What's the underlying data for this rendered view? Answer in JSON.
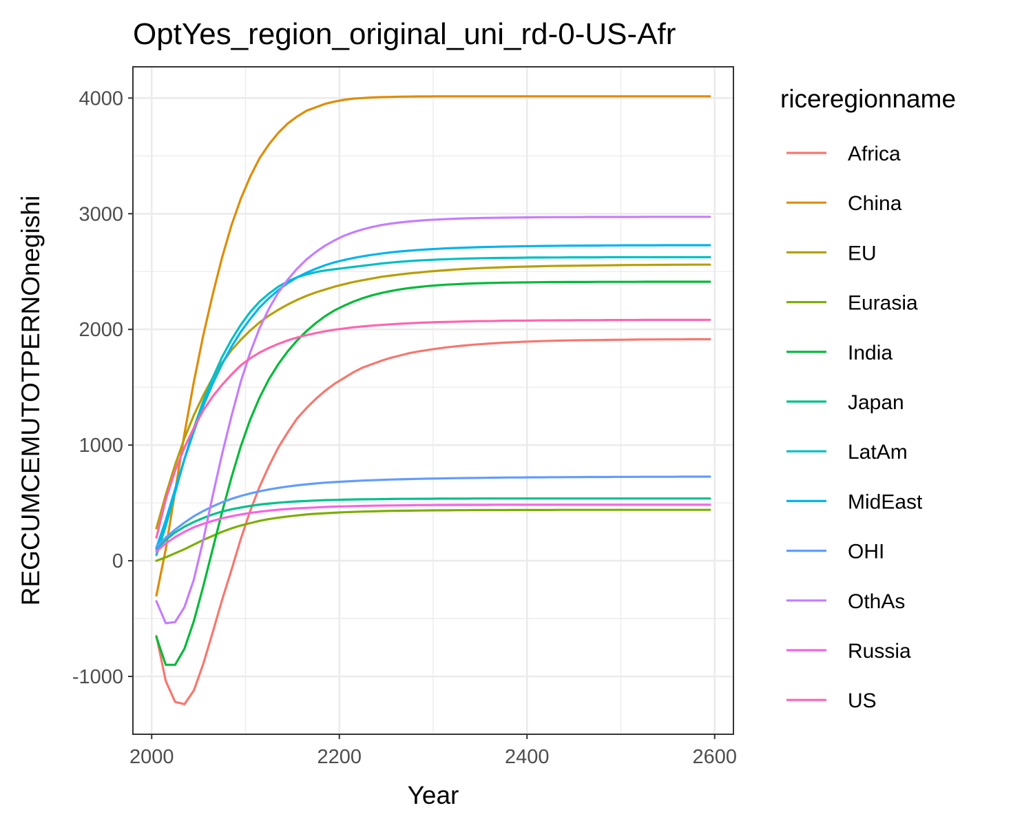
{
  "chart_data": {
    "type": "line",
    "title": "OptYes_region_original_uni_rd-0-US-Afr",
    "xlabel": "Year",
    "ylabel": "REGCUMCEMUTOTPERNOnegishi",
    "xlim": [
      1980,
      2620
    ],
    "ylim": [
      -1500,
      4270
    ],
    "x_ticks": [
      2000,
      2200,
      2400,
      2600
    ],
    "x_tick_labels": [
      "2000",
      "2200",
      "2400",
      "2600"
    ],
    "y_ticks": [
      -1000,
      0,
      1000,
      2000,
      3000,
      4000
    ],
    "y_tick_labels": [
      "-1000",
      "0",
      "1000",
      "2000",
      "3000",
      "4000"
    ],
    "grid": true,
    "legend_title": "riceregionname",
    "legend_position": "right",
    "x": [
      2005,
      2015,
      2025,
      2035,
      2045,
      2055,
      2065,
      2075,
      2085,
      2095,
      2105,
      2115,
      2125,
      2135,
      2145,
      2155,
      2165,
      2175,
      2185,
      2195,
      2205,
      2215,
      2225,
      2235,
      2245,
      2255,
      2265,
      2275,
      2285,
      2295,
      2305,
      2315,
      2325,
      2335,
      2345,
      2355,
      2365,
      2375,
      2385,
      2395,
      2405,
      2415,
      2425,
      2435,
      2445,
      2455,
      2465,
      2475,
      2485,
      2495,
      2505,
      2515,
      2525,
      2535,
      2545,
      2555,
      2565,
      2575,
      2585,
      2595
    ],
    "series": [
      {
        "name": "Africa",
        "color": "#F8766D",
        "values": [
          -650,
          -1040,
          -1220,
          -1240,
          -1120,
          -890,
          -620,
          -340,
          -80,
          190,
          430,
          640,
          820,
          980,
          1110,
          1230,
          1320,
          1400,
          1470,
          1530,
          1580,
          1630,
          1670,
          1700,
          1730,
          1755,
          1775,
          1795,
          1810,
          1823,
          1835,
          1845,
          1854,
          1862,
          1869,
          1875,
          1880,
          1885,
          1889,
          1893,
          1896,
          1899,
          1901,
          1903,
          1905,
          1906,
          1907,
          1908,
          1909,
          1910,
          1911,
          1912,
          1913,
          1913,
          1914,
          1914,
          1914,
          1915,
          1915,
          1915
        ]
      },
      {
        "name": "China",
        "color": "#DE8C00",
        "values": [
          -300,
          100,
          600,
          1100,
          1550,
          1950,
          2300,
          2620,
          2900,
          3130,
          3320,
          3480,
          3600,
          3700,
          3780,
          3840,
          3890,
          3920,
          3950,
          3970,
          3985,
          3995,
          4000,
          4005,
          4008,
          4010,
          4012,
          4013,
          4014,
          4014,
          4015,
          4015,
          4015,
          4015,
          4015,
          4015,
          4015,
          4015,
          4015,
          4015,
          4015,
          4015,
          4015,
          4015,
          4015,
          4015,
          4015,
          4015,
          4015,
          4015,
          4015,
          4015,
          4015,
          4015,
          4015,
          4015,
          4015,
          4015,
          4015,
          4015
        ]
      },
      {
        "name": "EU",
        "color": "#B79F00",
        "values": [
          280,
          570,
          830,
          1060,
          1260,
          1430,
          1580,
          1710,
          1820,
          1910,
          1990,
          2060,
          2120,
          2170,
          2215,
          2255,
          2290,
          2320,
          2345,
          2370,
          2390,
          2410,
          2425,
          2440,
          2455,
          2465,
          2475,
          2485,
          2492,
          2500,
          2507,
          2513,
          2518,
          2523,
          2527,
          2531,
          2534,
          2537,
          2540,
          2542,
          2544,
          2546,
          2548,
          2549,
          2550,
          2551,
          2552,
          2553,
          2554,
          2555,
          2556,
          2557,
          2557,
          2558,
          2558,
          2559,
          2559,
          2560,
          2560,
          2560
        ]
      },
      {
        "name": "Eurasia",
        "color": "#7CAE00",
        "values": [
          0,
          30,
          65,
          100,
          140,
          180,
          215,
          250,
          280,
          305,
          325,
          345,
          360,
          372,
          383,
          392,
          400,
          406,
          411,
          415,
          419,
          422,
          425,
          427,
          429,
          431,
          432,
          433,
          434,
          435,
          436,
          436,
          437,
          437,
          438,
          438,
          438,
          438,
          439,
          439,
          439,
          439,
          439,
          440,
          440,
          440,
          440,
          440,
          440,
          440,
          440,
          440,
          440,
          440,
          440,
          440,
          440,
          440,
          440,
          440
        ]
      },
      {
        "name": "India",
        "color": "#00BA38",
        "values": [
          -660,
          -900,
          -900,
          -760,
          -520,
          -220,
          100,
          420,
          720,
          990,
          1220,
          1410,
          1570,
          1700,
          1810,
          1905,
          1985,
          2055,
          2115,
          2165,
          2205,
          2240,
          2270,
          2295,
          2315,
          2332,
          2346,
          2358,
          2367,
          2375,
          2382,
          2387,
          2391,
          2395,
          2398,
          2400,
          2402,
          2404,
          2405,
          2406,
          2407,
          2408,
          2409,
          2409,
          2410,
          2410,
          2410,
          2411,
          2411,
          2411,
          2411,
          2411,
          2412,
          2412,
          2412,
          2412,
          2412,
          2412,
          2412,
          2412
        ]
      },
      {
        "name": "Japan",
        "color": "#00C08B",
        "values": [
          100,
          180,
          245,
          295,
          335,
          370,
          400,
          425,
          445,
          460,
          474,
          485,
          494,
          502,
          508,
          513,
          517,
          521,
          524,
          526,
          528,
          530,
          531,
          532,
          533,
          534,
          535,
          535,
          536,
          536,
          537,
          537,
          537,
          537,
          538,
          538,
          538,
          538,
          538,
          538,
          538,
          538,
          538,
          538,
          538,
          538,
          538,
          538,
          538,
          538,
          538,
          538,
          538,
          538,
          538,
          538,
          538,
          538,
          538,
          538
        ]
      },
      {
        "name": "LatAm",
        "color": "#00BFC4",
        "values": [
          50,
          300,
          590,
          880,
          1150,
          1380,
          1580,
          1760,
          1910,
          2040,
          2150,
          2240,
          2310,
          2370,
          2415,
          2450,
          2475,
          2495,
          2510,
          2520,
          2530,
          2540,
          2550,
          2560,
          2570,
          2578,
          2585,
          2591,
          2596,
          2600,
          2604,
          2607,
          2610,
          2612,
          2614,
          2616,
          2617,
          2618,
          2619,
          2620,
          2621,
          2621,
          2622,
          2622,
          2623,
          2623,
          2623,
          2623,
          2624,
          2624,
          2624,
          2624,
          2624,
          2624,
          2624,
          2624,
          2624,
          2624,
          2624,
          2624
        ]
      },
      {
        "name": "MidEast",
        "color": "#00B4F0",
        "values": [
          110,
          350,
          620,
          880,
          1120,
          1340,
          1530,
          1700,
          1850,
          1980,
          2090,
          2190,
          2270,
          2340,
          2400,
          2450,
          2490,
          2525,
          2555,
          2580,
          2600,
          2617,
          2632,
          2645,
          2656,
          2666,
          2674,
          2681,
          2687,
          2692,
          2697,
          2701,
          2704,
          2707,
          2710,
          2712,
          2714,
          2716,
          2717,
          2719,
          2720,
          2721,
          2722,
          2723,
          2724,
          2724,
          2725,
          2725,
          2726,
          2726,
          2727,
          2727,
          2727,
          2727,
          2728,
          2728,
          2728,
          2728,
          2728,
          2728
        ]
      },
      {
        "name": "OHI",
        "color": "#619CFF",
        "values": [
          120,
          200,
          270,
          330,
          385,
          430,
          470,
          505,
          535,
          560,
          582,
          600,
          616,
          630,
          642,
          652,
          661,
          668,
          675,
          680,
          685,
          689,
          693,
          696,
          699,
          702,
          704,
          706,
          708,
          710,
          711,
          713,
          714,
          715,
          716,
          717,
          718,
          719,
          720,
          720,
          721,
          721,
          722,
          722,
          723,
          723,
          724,
          724,
          724,
          725,
          725,
          725,
          726,
          726,
          726,
          726,
          727,
          727,
          727,
          727
        ]
      },
      {
        "name": "OthAs",
        "color": "#C77CFF",
        "values": [
          -350,
          -540,
          -530,
          -400,
          -160,
          180,
          560,
          920,
          1250,
          1550,
          1800,
          2010,
          2180,
          2320,
          2430,
          2525,
          2605,
          2670,
          2725,
          2770,
          2810,
          2840,
          2865,
          2885,
          2902,
          2915,
          2925,
          2933,
          2940,
          2946,
          2950,
          2954,
          2957,
          2960,
          2962,
          2964,
          2965,
          2966,
          2967,
          2968,
          2969,
          2970,
          2970,
          2971,
          2971,
          2971,
          2972,
          2972,
          2972,
          2972,
          2972,
          2972,
          2973,
          2973,
          2973,
          2973,
          2973,
          2973,
          2973,
          2973
        ]
      },
      {
        "name": "Russia",
        "color": "#F564E3",
        "values": [
          80,
          150,
          205,
          250,
          290,
          320,
          345,
          367,
          385,
          400,
          413,
          424,
          433,
          441,
          447,
          453,
          457,
          461,
          465,
          468,
          470,
          472,
          474,
          476,
          477,
          478,
          479,
          480,
          481,
          481,
          482,
          482,
          483,
          483,
          483,
          483,
          484,
          484,
          484,
          484,
          484,
          484,
          484,
          484,
          484,
          484,
          484,
          484,
          484,
          484,
          484,
          484,
          484,
          484,
          484,
          484,
          484,
          484,
          484,
          484
        ]
      },
      {
        "name": "US",
        "color": "#FF64B0",
        "values": [
          200,
          530,
          780,
          980,
          1150,
          1300,
          1420,
          1520,
          1610,
          1690,
          1750,
          1800,
          1840,
          1875,
          1905,
          1930,
          1950,
          1968,
          1984,
          1997,
          2008,
          2018,
          2026,
          2033,
          2039,
          2044,
          2049,
          2053,
          2057,
          2060,
          2063,
          2065,
          2067,
          2069,
          2071,
          2072,
          2073,
          2075,
          2076,
          2076,
          2077,
          2078,
          2078,
          2079,
          2079,
          2080,
          2080,
          2080,
          2081,
          2081,
          2081,
          2081,
          2082,
          2082,
          2082,
          2082,
          2082,
          2082,
          2082,
          2083
        ]
      }
    ]
  }
}
